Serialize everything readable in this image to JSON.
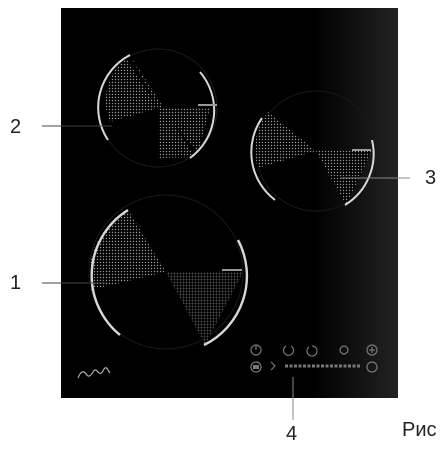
{
  "callouts": {
    "c1": "1",
    "c2": "2",
    "c3": "3",
    "c4": "4"
  },
  "caption": "Рис",
  "colors": {
    "glass": "#000000",
    "ring": "#d8d8d8",
    "hatch": "#9a9a9a",
    "leader": "#444444"
  },
  "icons": [
    "power-icon",
    "lock-icon",
    "timer-icon",
    "minus-icon",
    "plus-icon",
    "zone-select-icon"
  ]
}
